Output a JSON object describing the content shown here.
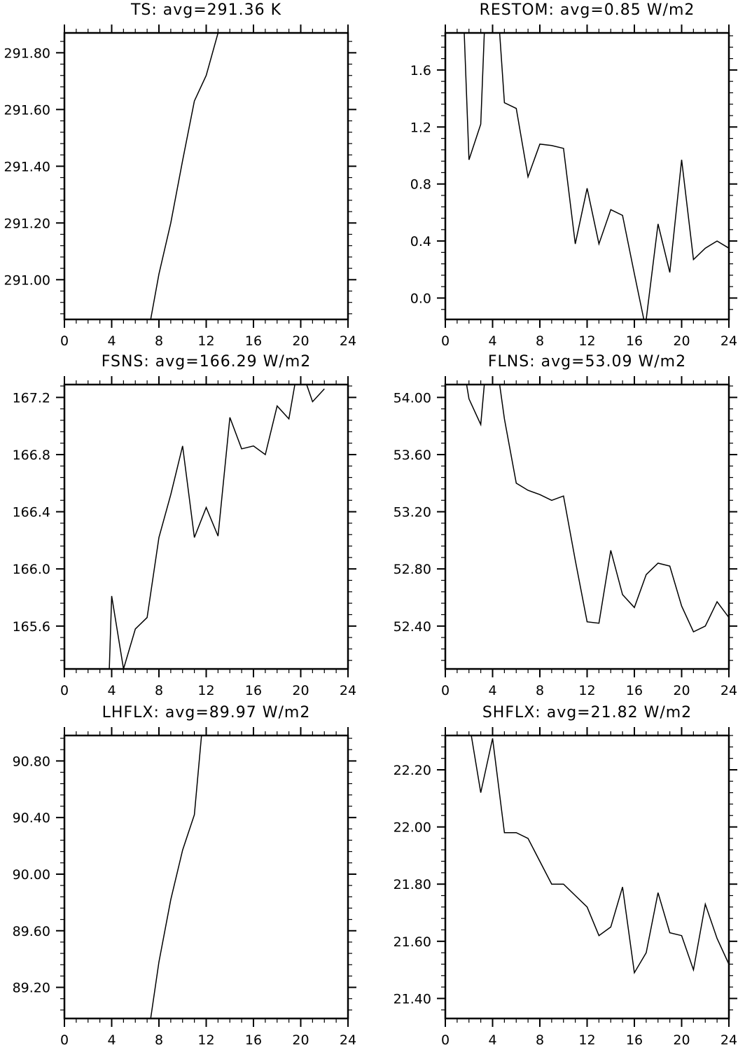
{
  "chart_data": [
    {
      "type": "line",
      "title": "TS: avg=291.36 K",
      "xlabel": "",
      "ylabel": "",
      "xlim": [
        0,
        24
      ],
      "ylim": [
        290.86,
        291.87
      ],
      "xticks": [
        0,
        4,
        8,
        12,
        16,
        20,
        24
      ],
      "xtick_labels": [
        "0",
        "4",
        "8",
        "12",
        "16",
        "20",
        "24"
      ],
      "yticks": [
        291.0,
        291.2,
        291.4,
        291.6,
        291.8
      ],
      "ytick_labels": [
        "291.00",
        "291.20",
        "291.40",
        "291.60",
        "291.80"
      ],
      "yminor": 0.04,
      "grid": false,
      "series": [
        {
          "x": [
            7.3,
            8,
            9,
            10,
            11,
            12,
            13
          ],
          "y": [
            290.86,
            291.02,
            291.2,
            291.42,
            291.63,
            291.72,
            291.87
          ]
        }
      ]
    },
    {
      "type": "line",
      "title": "RESTOM: avg=0.85 W/m2",
      "xlabel": "",
      "ylabel": "",
      "xlim": [
        0,
        24
      ],
      "ylim": [
        -0.15,
        1.86
      ],
      "xticks": [
        0,
        4,
        8,
        12,
        16,
        20,
        24
      ],
      "xtick_labels": [
        "0",
        "4",
        "8",
        "12",
        "16",
        "20",
        "24"
      ],
      "yticks": [
        0.0,
        0.4,
        0.8,
        1.2,
        1.6
      ],
      "ytick_labels": [
        "0.0",
        "0.4",
        "0.8",
        "1.2",
        "1.6"
      ],
      "yminor": 0.08,
      "grid": false,
      "series": [
        {
          "x": [
            1.6,
            2,
            3,
            3.3,
            4.6,
            5,
            6,
            7,
            8,
            9,
            10,
            11,
            12,
            13,
            14,
            15,
            16,
            16.8,
            17,
            18,
            19,
            20,
            21,
            22,
            23,
            24
          ],
          "y": [
            1.86,
            0.97,
            1.22,
            1.86,
            1.86,
            1.37,
            1.33,
            0.85,
            1.08,
            1.07,
            1.05,
            0.38,
            0.77,
            0.38,
            0.62,
            0.58,
            0.17,
            -0.15,
            -0.15,
            0.52,
            0.18,
            0.97,
            0.27,
            0.35,
            0.4,
            0.35
          ]
        }
      ]
    },
    {
      "type": "line",
      "title": "FSNS: avg=166.29 W/m2",
      "xlabel": "",
      "ylabel": "",
      "xlim": [
        0,
        24
      ],
      "ylim": [
        165.3,
        167.29
      ],
      "xticks": [
        0,
        4,
        8,
        12,
        16,
        20,
        24
      ],
      "xtick_labels": [
        "0",
        "4",
        "8",
        "12",
        "16",
        "20",
        "24"
      ],
      "yticks": [
        165.6,
        166.0,
        166.4,
        166.8,
        167.2
      ],
      "ytick_labels": [
        "165.6",
        "166.0",
        "166.4",
        "166.8",
        "167.2"
      ],
      "yminor": 0.08,
      "grid": false,
      "series": [
        {
          "x": [
            3.8,
            4,
            5,
            6,
            7,
            8,
            9,
            10,
            11,
            12,
            13,
            14,
            15,
            16,
            17,
            18,
            19,
            19.5,
            20.5,
            21,
            22
          ],
          "y": [
            165.3,
            165.81,
            165.3,
            165.58,
            165.66,
            166.22,
            166.52,
            166.86,
            166.22,
            166.43,
            166.23,
            167.06,
            166.84,
            166.86,
            166.8,
            167.14,
            167.05,
            167.29,
            167.29,
            167.17,
            167.26
          ]
        }
      ]
    },
    {
      "type": "line",
      "title": "FLNS: avg=53.09 W/m2",
      "xlabel": "",
      "ylabel": "",
      "xlim": [
        0,
        24
      ],
      "ylim": [
        52.1,
        54.09
      ],
      "xticks": [
        0,
        4,
        8,
        12,
        16,
        20,
        24
      ],
      "xtick_labels": [
        "0",
        "4",
        "8",
        "12",
        "16",
        "20",
        "24"
      ],
      "yticks": [
        52.4,
        52.8,
        53.2,
        53.6,
        54.0
      ],
      "ytick_labels": [
        "52.40",
        "52.80",
        "53.20",
        "53.60",
        "54.00"
      ],
      "yminor": 0.08,
      "grid": false,
      "series": [
        {
          "x": [
            1.8,
            2,
            3,
            3.3,
            4.6,
            5,
            6,
            7,
            8,
            9,
            10,
            11,
            12,
            13,
            14,
            15,
            16,
            17,
            18,
            19,
            20,
            21,
            22,
            23,
            24
          ],
          "y": [
            54.09,
            53.99,
            53.81,
            54.09,
            54.09,
            53.85,
            53.4,
            53.35,
            53.32,
            53.28,
            53.31,
            52.86,
            52.43,
            52.42,
            52.93,
            52.62,
            52.53,
            52.76,
            52.84,
            52.82,
            52.54,
            52.36,
            52.4,
            52.57,
            52.46
          ]
        }
      ]
    },
    {
      "type": "line",
      "title": "LHFLX: avg=89.97 W/m2",
      "xlabel": "",
      "ylabel": "",
      "xlim": [
        0,
        24
      ],
      "ylim": [
        88.98,
        90.98
      ],
      "xticks": [
        0,
        4,
        8,
        12,
        16,
        20,
        24
      ],
      "xtick_labels": [
        "0",
        "4",
        "8",
        "12",
        "16",
        "20",
        "24"
      ],
      "yticks": [
        89.2,
        89.6,
        90.0,
        90.4,
        90.8
      ],
      "ytick_labels": [
        "89.20",
        "89.60",
        "90.00",
        "90.40",
        "90.80"
      ],
      "yminor": 0.08,
      "grid": false,
      "series": [
        {
          "x": [
            7.3,
            8,
            9,
            10,
            11,
            11.6
          ],
          "y": [
            88.98,
            89.38,
            89.82,
            90.17,
            90.42,
            90.98
          ]
        }
      ]
    },
    {
      "type": "line",
      "title": "SHFLX: avg=21.82 W/m2",
      "xlabel": "",
      "ylabel": "",
      "xlim": [
        0,
        24
      ],
      "ylim": [
        21.33,
        22.32
      ],
      "xticks": [
        0,
        4,
        8,
        12,
        16,
        20,
        24
      ],
      "xtick_labels": [
        "0",
        "4",
        "8",
        "12",
        "16",
        "20",
        "24"
      ],
      "yticks": [
        21.4,
        21.6,
        21.8,
        22.0,
        22.2
      ],
      "ytick_labels": [
        "21.40",
        "21.60",
        "21.80",
        "22.00",
        "22.20"
      ],
      "yminor": 0.04,
      "grid": false,
      "series": [
        {
          "x": [
            2.2,
            3,
            4,
            5,
            6,
            7,
            8,
            9,
            10,
            11,
            12,
            13,
            14,
            15,
            16,
            17,
            18,
            19,
            20,
            21,
            22,
            23,
            24
          ],
          "y": [
            22.32,
            22.12,
            22.31,
            21.98,
            21.98,
            21.96,
            21.88,
            21.8,
            21.8,
            21.76,
            21.72,
            21.62,
            21.65,
            21.79,
            21.49,
            21.56,
            21.77,
            21.63,
            21.62,
            21.5,
            21.73,
            21.61,
            21.52
          ]
        }
      ]
    }
  ]
}
